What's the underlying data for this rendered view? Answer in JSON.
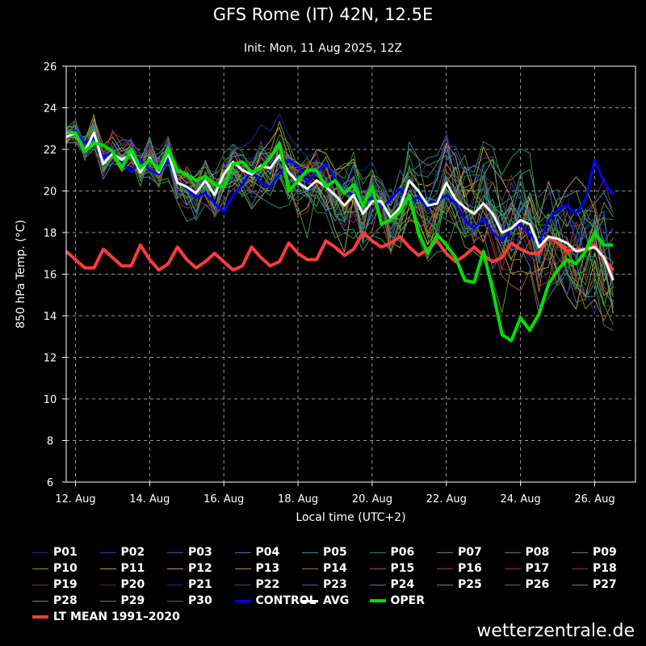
{
  "title": "GFS Rome (IT) 42N, 12.5E",
  "subtitle": "Init: Mon, 11 Aug 2025, 12Z",
  "footer": "wetterzentrale.de",
  "chart_data": {
    "type": "line",
    "xlabel": "Local time (UTC+2)",
    "ylabel": "850 hPa Temp. (°C)",
    "ylim": [
      6,
      26
    ],
    "yticks": [
      6,
      8,
      10,
      12,
      14,
      16,
      18,
      20,
      22,
      24,
      26
    ],
    "xlim": [
      11.75,
      27.1
    ],
    "xticks": [
      12,
      14,
      16,
      18,
      20,
      22,
      24,
      26
    ],
    "xtick_labels": [
      "12. Aug",
      "14. Aug",
      "16. Aug",
      "18. Aug",
      "20. Aug",
      "22. Aug",
      "24. Aug",
      "26. Aug"
    ],
    "grid": true,
    "x": [
      11.75,
      12.0,
      12.25,
      12.5,
      12.75,
      13.0,
      13.25,
      13.5,
      13.75,
      14.0,
      14.25,
      14.5,
      14.75,
      15.0,
      15.25,
      15.5,
      15.75,
      16.0,
      16.25,
      16.5,
      16.75,
      17.0,
      17.25,
      17.5,
      17.75,
      18.0,
      18.25,
      18.5,
      18.75,
      19.0,
      19.25,
      19.5,
      19.75,
      20.0,
      20.25,
      20.5,
      20.75,
      21.0,
      21.25,
      21.5,
      21.75,
      22.0,
      22.25,
      22.5,
      22.75,
      23.0,
      23.25,
      23.5,
      23.75,
      24.0,
      24.25,
      24.5,
      24.75,
      25.0,
      25.25,
      25.5,
      25.75,
      26.0,
      26.25,
      26.5
    ],
    "series": [
      {
        "name": "P01",
        "color": "#1a2e8c",
        "width": 1
      },
      {
        "name": "P02",
        "color": "#1f3fae",
        "width": 1
      },
      {
        "name": "P03",
        "color": "#2d57b8",
        "width": 1
      },
      {
        "name": "P04",
        "color": "#3c78b4",
        "width": 1
      },
      {
        "name": "P05",
        "color": "#3f8aa8",
        "width": 1
      },
      {
        "name": "P06",
        "color": "#2e8b4a",
        "width": 1
      },
      {
        "name": "P07",
        "color": "#3a9a4a",
        "width": 1
      },
      {
        "name": "P08",
        "color": "#3c8f48",
        "width": 1
      },
      {
        "name": "P09",
        "color": "#4a9a3a",
        "width": 1
      },
      {
        "name": "P10",
        "color": "#8a9a2a",
        "width": 1
      },
      {
        "name": "P11",
        "color": "#b0a030",
        "width": 1
      },
      {
        "name": "P12",
        "color": "#c8a040",
        "width": 1
      },
      {
        "name": "P13",
        "color": "#c88a30",
        "width": 1
      },
      {
        "name": "P14",
        "color": "#b06a2a",
        "width": 1
      },
      {
        "name": "P15",
        "color": "#a8502a",
        "width": 1
      },
      {
        "name": "P16",
        "color": "#a04040",
        "width": 1
      },
      {
        "name": "P17",
        "color": "#983048",
        "width": 1
      },
      {
        "name": "P18",
        "color": "#8a2a3a",
        "width": 1
      },
      {
        "name": "P19",
        "color": "#7a3030",
        "width": 1
      },
      {
        "name": "P20",
        "color": "#6a2830",
        "width": 1
      },
      {
        "name": "P21",
        "color": "#1a2a9a",
        "width": 1
      },
      {
        "name": "P22",
        "color": "#2a4fa8",
        "width": 1
      },
      {
        "name": "P23",
        "color": "#3a6aa0",
        "width": 1
      },
      {
        "name": "P24",
        "color": "#3a88a0",
        "width": 1
      },
      {
        "name": "P25",
        "color": "#3a9a8a",
        "width": 1
      },
      {
        "name": "P26",
        "color": "#2e8a5a",
        "width": 1
      },
      {
        "name": "P27",
        "color": "#3a9a6a",
        "width": 1
      },
      {
        "name": "P28",
        "color": "#4aa84a",
        "width": 1
      },
      {
        "name": "P29",
        "color": "#2f9a3a",
        "width": 1
      },
      {
        "name": "P30",
        "color": "#238a2a",
        "width": 1
      },
      {
        "name": "CONTROL",
        "color": "#0000ff",
        "width": 3,
        "values": [
          22.7,
          22.9,
          22.3,
          22.6,
          21.6,
          21.9,
          21.4,
          20.9,
          21.5,
          21.0,
          20.8,
          21.6,
          20.5,
          20.1,
          19.7,
          19.9,
          19.4,
          19.0,
          19.8,
          20.3,
          21.0,
          20.4,
          20.2,
          20.8,
          21.5,
          21.2,
          20.4,
          20.9,
          21.3,
          20.6,
          20.0,
          19.8,
          19.4,
          19.7,
          19.2,
          19.6,
          20.1,
          19.5,
          19.7,
          19.2,
          19.5,
          19.8,
          19.4,
          18.6,
          18.2,
          18.7,
          18.0,
          17.6,
          18.2,
          18.4,
          17.9,
          17.5,
          18.6,
          19.1,
          19.3,
          18.9,
          19.6,
          21.5,
          20.4,
          19.8
        ]
      },
      {
        "name": "AVG",
        "color": "#ffffff",
        "width": 3,
        "values": [
          22.6,
          22.8,
          21.9,
          22.8,
          21.3,
          21.8,
          21.5,
          21.8,
          20.9,
          21.6,
          20.9,
          21.8,
          20.4,
          20.2,
          19.9,
          20.5,
          19.8,
          20.8,
          21.4,
          21.0,
          20.8,
          21.2,
          21.1,
          21.7,
          20.9,
          20.4,
          20.1,
          20.5,
          20.2,
          19.8,
          19.3,
          19.8,
          18.9,
          19.5,
          19.5,
          18.7,
          19.2,
          20.5,
          20.0,
          19.3,
          19.4,
          20.4,
          19.6,
          19.2,
          18.9,
          19.4,
          18.9,
          18.0,
          18.2,
          18.6,
          18.4,
          17.3,
          17.8,
          17.7,
          17.5,
          17.1,
          17.2,
          17.3,
          16.8,
          15.7
        ]
      },
      {
        "name": "OPER",
        "color": "#00e000",
        "width": 4,
        "values": [
          22.8,
          22.8,
          21.9,
          22.3,
          22.2,
          21.9,
          21.1,
          22.0,
          21.1,
          21.5,
          21.0,
          22.0,
          21.0,
          20.8,
          20.5,
          20.7,
          20.3,
          20.2,
          21.3,
          21.4,
          20.9,
          21.1,
          21.6,
          22.3,
          20.0,
          20.5,
          21.0,
          21.0,
          20.2,
          20.5,
          19.9,
          20.3,
          19.3,
          20.2,
          18.4,
          18.6,
          19.0,
          19.8,
          18.0,
          17.0,
          17.9,
          17.4,
          16.8,
          15.7,
          15.6,
          17.1,
          15.2,
          13.1,
          12.8,
          13.9,
          13.3,
          14.1,
          15.5,
          16.2,
          16.7,
          16.5,
          17.1,
          18.0,
          17.4,
          17.4
        ]
      },
      {
        "name": "LT MEAN 1991-2020",
        "color": "#ff3b3b",
        "width": 4,
        "values": [
          17.1,
          16.7,
          16.3,
          16.3,
          17.2,
          16.8,
          16.4,
          16.4,
          17.4,
          16.7,
          16.2,
          16.5,
          17.3,
          16.7,
          16.3,
          16.6,
          17.0,
          16.6,
          16.2,
          16.4,
          17.3,
          16.8,
          16.4,
          16.6,
          17.5,
          17.0,
          16.7,
          16.7,
          17.6,
          17.3,
          16.9,
          17.2,
          18.0,
          17.6,
          17.3,
          17.5,
          17.8,
          17.3,
          16.9,
          17.2,
          17.6,
          17.0,
          16.6,
          16.9,
          17.3,
          16.9,
          16.6,
          16.8,
          17.5,
          17.2,
          17.0,
          17.0,
          17.8,
          17.5,
          17.1,
          17.2,
          17.2,
          17.4,
          16.7,
          16.2
        ]
      }
    ],
    "legend": {
      "position": "bottom",
      "rows": [
        [
          "P01",
          "P02",
          "P03",
          "P04",
          "P05",
          "P06",
          "P07",
          "P08",
          "P09"
        ],
        [
          "P10",
          "P11",
          "P12",
          "P13",
          "P14",
          "P15",
          "P16",
          "P17",
          "P18"
        ],
        [
          "P19",
          "P20",
          "P21",
          "P22",
          "P23",
          "P24",
          "P25",
          "P26",
          "P27"
        ],
        [
          "P28",
          "P29",
          "P30",
          "CONTROL",
          "AVG",
          "OPER"
        ],
        [
          "LT MEAN 1991–2020"
        ]
      ]
    }
  }
}
